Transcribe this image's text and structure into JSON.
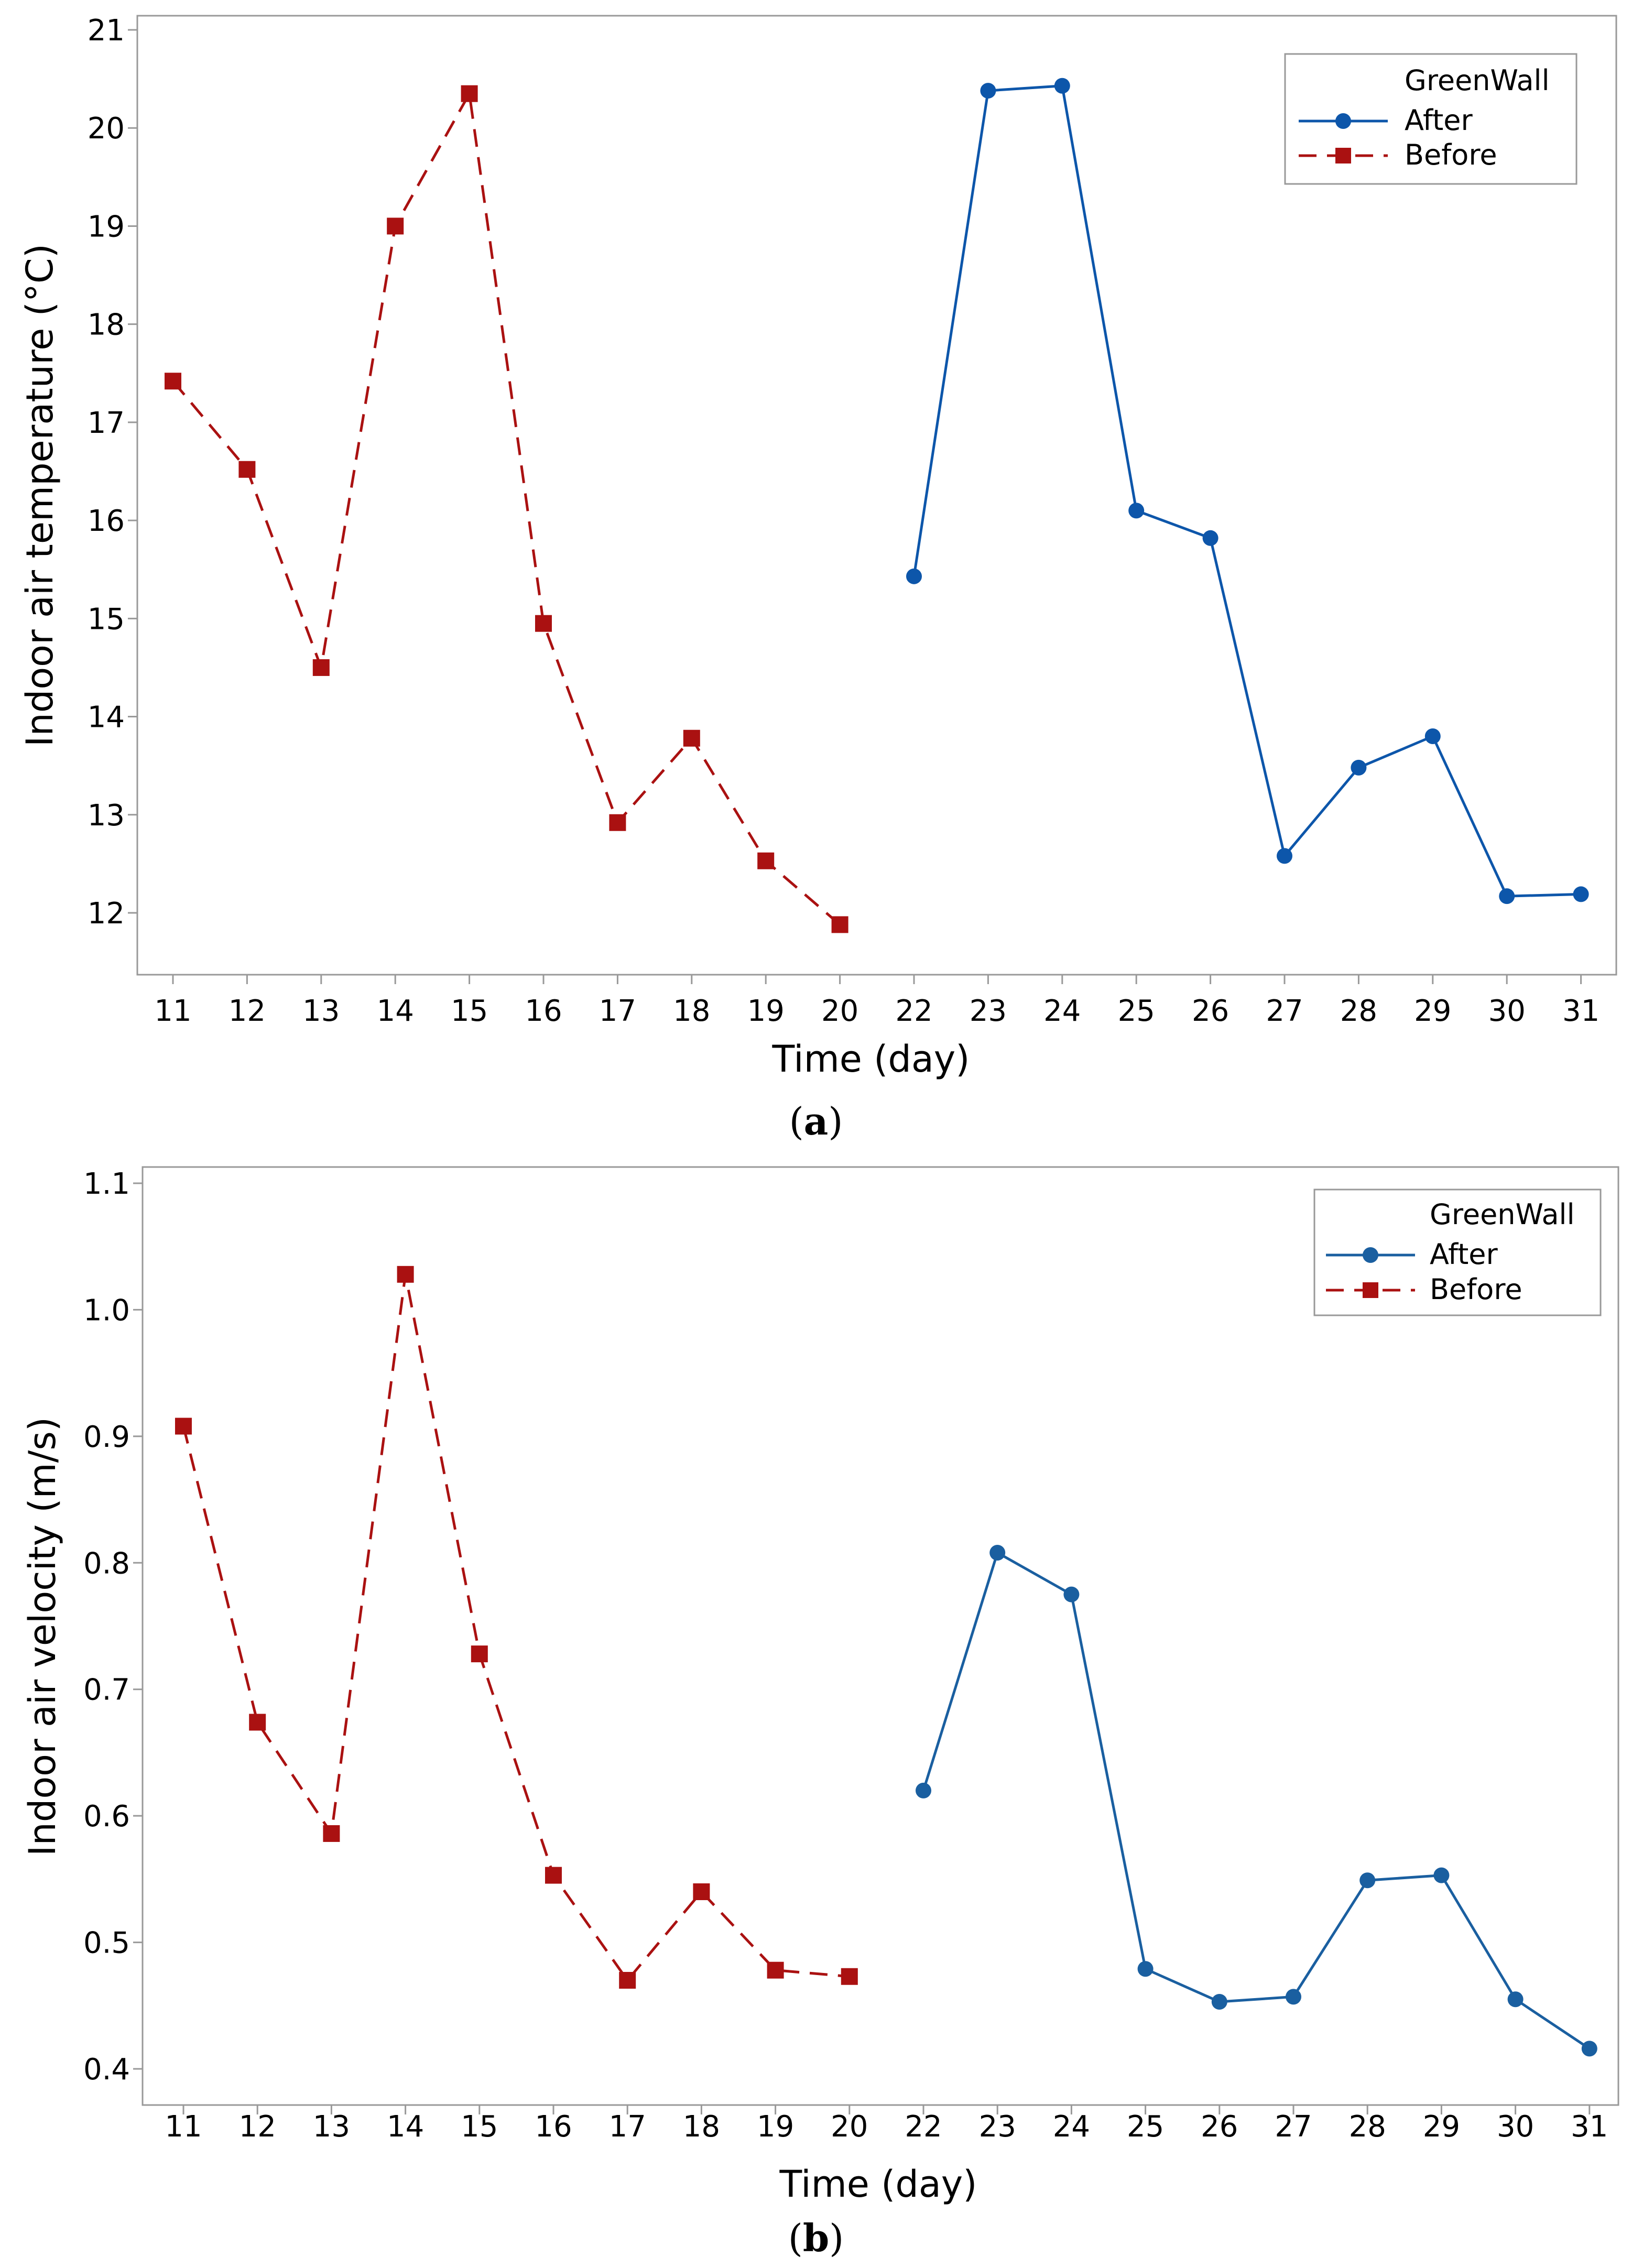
{
  "chart_data": [
    {
      "type": "line",
      "panel_label": "a",
      "xlabel": "Time (day)",
      "ylabel": "Indoor air temperature (°C)",
      "ylim": [
        11.6,
        21
      ],
      "yticks": [
        12,
        13,
        14,
        15,
        16,
        17,
        18,
        19,
        20,
        21
      ],
      "xtick_labels": [
        "11",
        "12",
        "13",
        "14",
        "15",
        "16",
        "17",
        "18",
        "19",
        "20",
        "22",
        "23",
        "24",
        "25",
        "26",
        "27",
        "28",
        "29",
        "30",
        "31"
      ],
      "legend": {
        "title": "GreenWall",
        "placement": "top-right"
      },
      "series": [
        {
          "name": "Before",
          "color": "#aa1111",
          "marker": "square",
          "line_style": "dashed",
          "x": [
            "11",
            "12",
            "13",
            "14",
            "15",
            "16",
            "17",
            "18",
            "19",
            "20"
          ],
          "values": [
            17.42,
            16.52,
            14.5,
            19.0,
            20.35,
            14.95,
            12.92,
            13.78,
            12.53,
            11.88
          ]
        },
        {
          "name": "After",
          "color": "#0d56aa",
          "marker": "circle",
          "line_style": "solid",
          "x": [
            "22",
            "23",
            "24",
            "25",
            "26",
            "27",
            "28",
            "29",
            "30",
            "31"
          ],
          "values": [
            15.43,
            20.38,
            20.43,
            16.1,
            15.82,
            12.58,
            13.48,
            13.8,
            12.17,
            12.19
          ]
        }
      ]
    },
    {
      "type": "line",
      "panel_label": "b",
      "xlabel": "Time (day)",
      "ylabel": "Indoor air velocity (m/s)",
      "ylim": [
        0.38,
        1.1
      ],
      "yticks": [
        0.4,
        0.5,
        0.6,
        0.7,
        0.8,
        0.9,
        1.0,
        1.1
      ],
      "ytick_labels": [
        "0.4",
        "0.5",
        "0.6",
        "0.7",
        "0.8",
        "0.9",
        "1.0",
        "1.1"
      ],
      "xtick_labels": [
        "11",
        "12",
        "13",
        "14",
        "15",
        "16",
        "17",
        "18",
        "19",
        "20",
        "22",
        "23",
        "24",
        "25",
        "26",
        "27",
        "28",
        "29",
        "30",
        "31"
      ],
      "legend": {
        "title": "GreenWall",
        "placement": "top-right"
      },
      "series": [
        {
          "name": "Before",
          "color": "#aa1111",
          "marker": "square",
          "line_style": "dashed",
          "x": [
            "11",
            "12",
            "13",
            "14",
            "15",
            "16",
            "17",
            "18",
            "19",
            "20"
          ],
          "values": [
            0.908,
            0.674,
            0.586,
            1.028,
            0.728,
            0.553,
            0.47,
            0.54,
            0.478,
            0.473
          ]
        },
        {
          "name": "After",
          "color": "#1a5fa0",
          "marker": "circle",
          "line_style": "solid",
          "x": [
            "22",
            "23",
            "24",
            "25",
            "26",
            "27",
            "28",
            "29",
            "30",
            "31"
          ],
          "values": [
            0.62,
            0.808,
            0.775,
            0.479,
            0.453,
            0.457,
            0.549,
            0.553,
            0.455,
            0.416
          ]
        }
      ]
    }
  ]
}
